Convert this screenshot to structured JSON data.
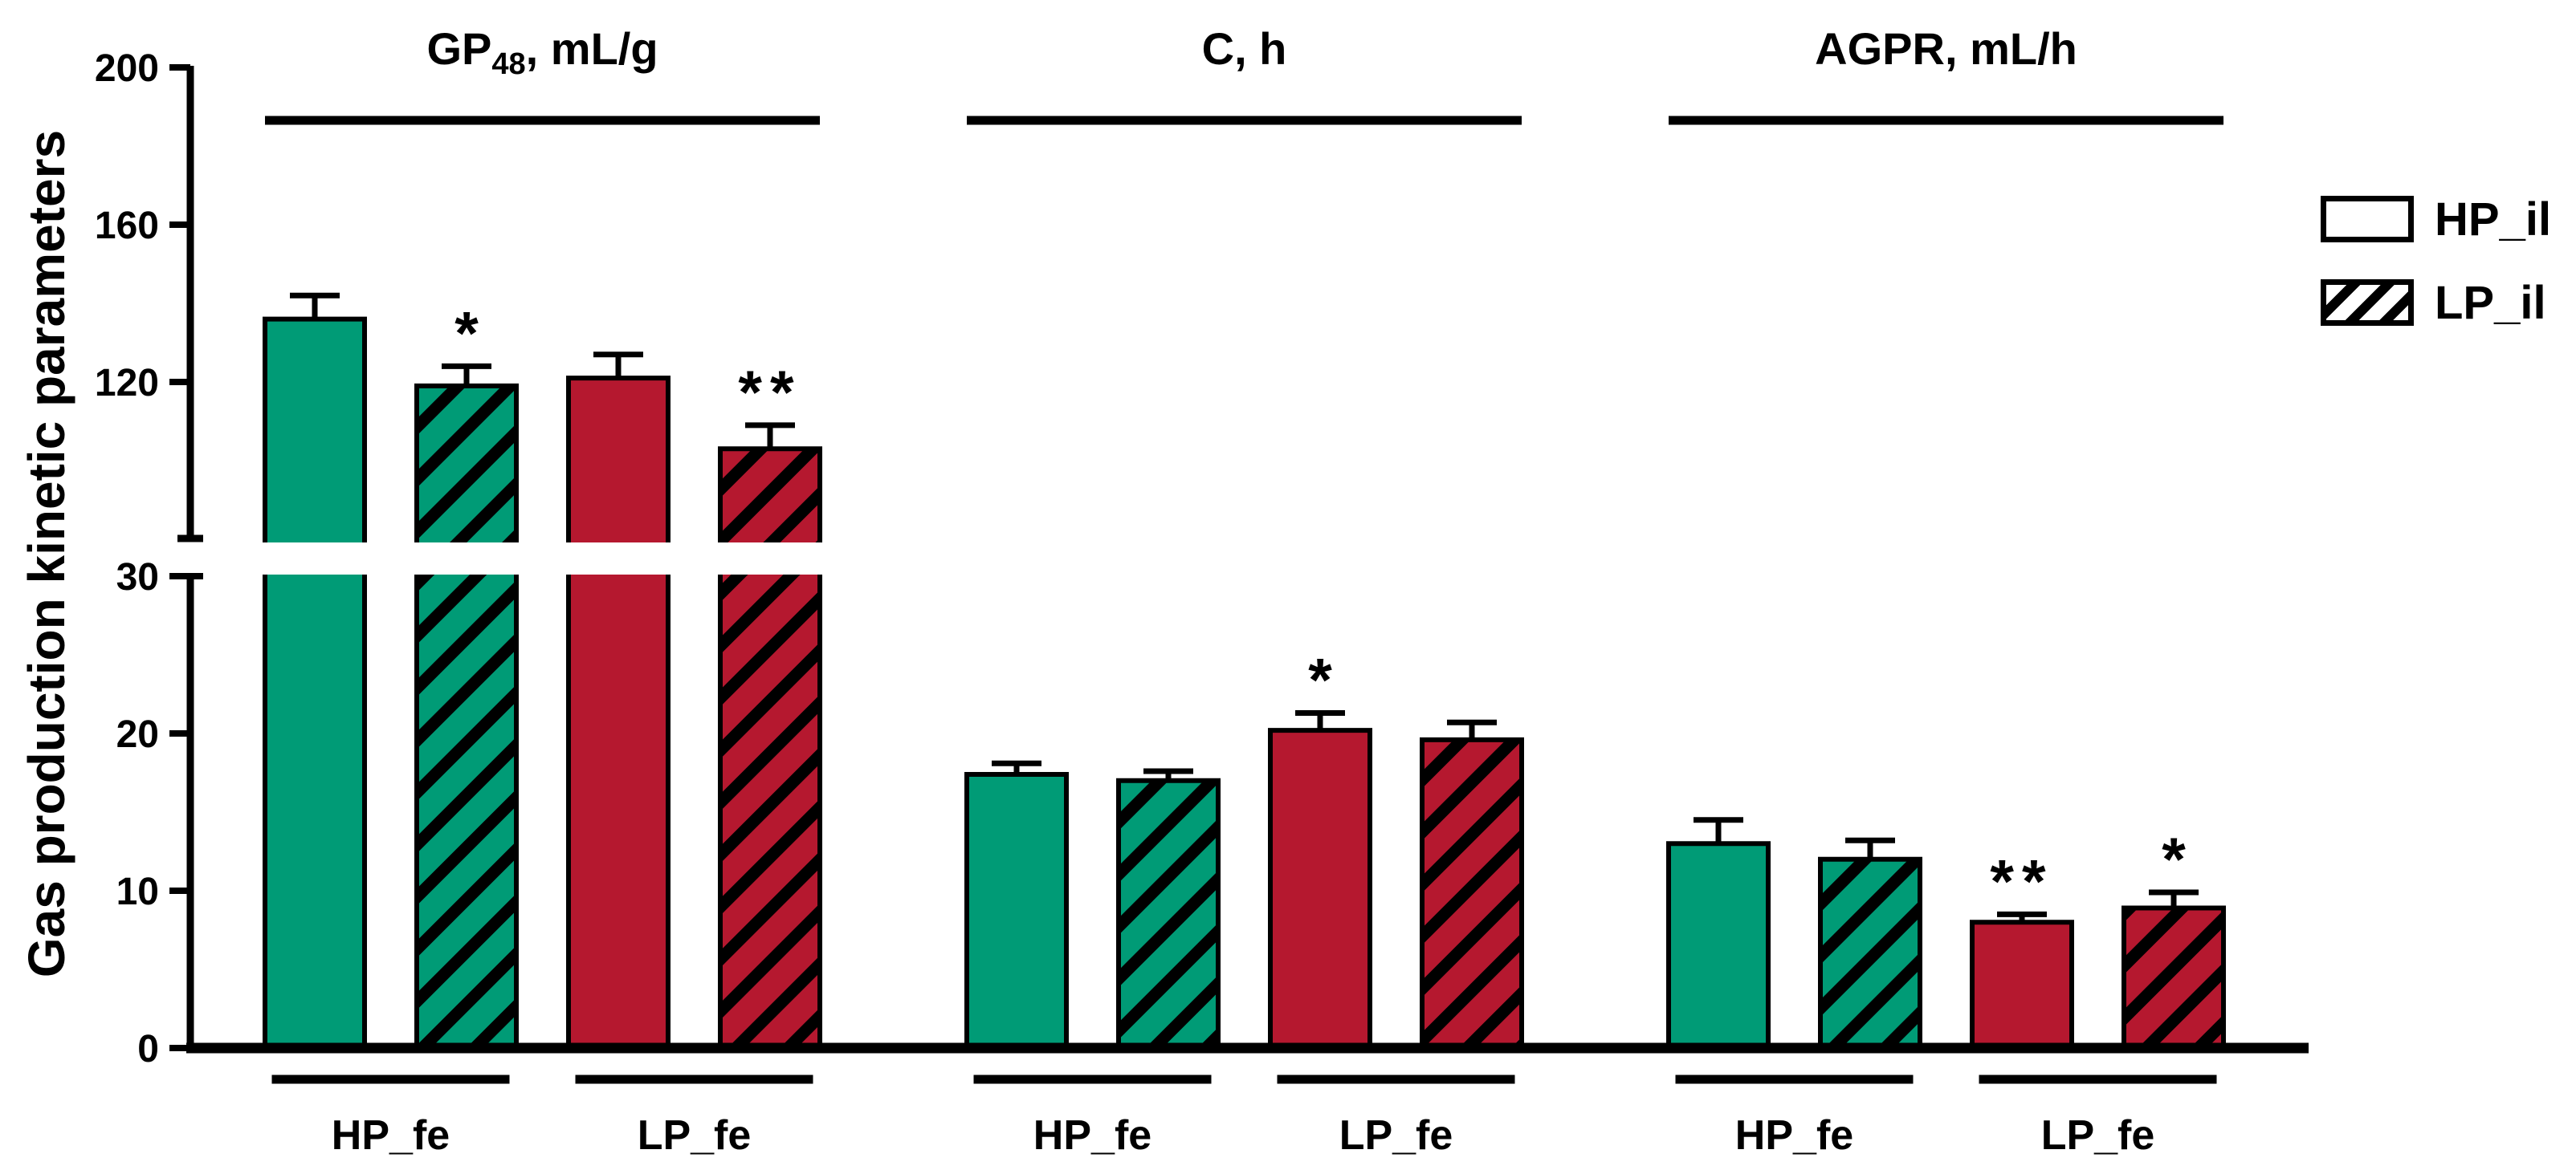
{
  "chart_data": {
    "type": "bar",
    "title": "",
    "ylabel": "Gas production kinetic parameters",
    "y_axis": {
      "broken": true,
      "upper_segment": {
        "ticks": [
          120,
          160,
          200
        ],
        "tick_labels": [
          "120",
          "160",
          "200"
        ],
        "range_start": 80,
        "range_end": 200
      },
      "lower_segment": {
        "ticks": [
          0,
          10,
          20,
          30
        ],
        "tick_labels": [
          "0",
          "10",
          "20",
          "30"
        ],
        "range_start": 0,
        "range_end": 30
      }
    },
    "legend": [
      {
        "name": "HP_il",
        "pattern": "solid"
      },
      {
        "name": "LP_il",
        "pattern": "hatched"
      }
    ],
    "colors": {
      "HP_fe": "#009B76",
      "LP_fe": "#B5182F",
      "outline": "#000000"
    },
    "panels": [
      {
        "key": "gp48",
        "parameter": "GP48, mL/g",
        "title_main": "GP",
        "title_sub": "48",
        "title_suffix": ", mL/g",
        "groups": [
          {
            "label": "HP_fe",
            "color_key": "HP_fe",
            "bars": [
              {
                "series": "HP_il",
                "hatched": false,
                "value": 136,
                "error": 6,
                "significance": ""
              },
              {
                "series": "LP_il",
                "hatched": true,
                "value": 119,
                "error": 5,
                "significance": "*"
              }
            ]
          },
          {
            "label": "LP_fe",
            "color_key": "LP_fe",
            "bars": [
              {
                "series": "HP_il",
                "hatched": false,
                "value": 121,
                "error": 6,
                "significance": ""
              },
              {
                "series": "LP_il",
                "hatched": true,
                "value": 103,
                "error": 6,
                "significance": "**"
              }
            ]
          }
        ]
      },
      {
        "key": "c",
        "parameter": "C, h",
        "title_main": "C",
        "title_sub": "",
        "title_suffix": ", h",
        "groups": [
          {
            "label": "HP_fe",
            "color_key": "HP_fe",
            "bars": [
              {
                "series": "HP_il",
                "hatched": false,
                "value": 17.4,
                "error": 0.7,
                "significance": ""
              },
              {
                "series": "LP_il",
                "hatched": true,
                "value": 17.0,
                "error": 0.6,
                "significance": ""
              }
            ]
          },
          {
            "label": "LP_fe",
            "color_key": "LP_fe",
            "bars": [
              {
                "series": "HP_il",
                "hatched": false,
                "value": 20.2,
                "error": 1.1,
                "significance": "*"
              },
              {
                "series": "LP_il",
                "hatched": true,
                "value": 19.6,
                "error": 1.1,
                "significance": ""
              }
            ]
          }
        ]
      },
      {
        "key": "agpr",
        "parameter": "AGPR, mL/h",
        "title_main": "AGPR",
        "title_sub": "",
        "title_suffix": ", mL/h",
        "groups": [
          {
            "label": "HP_fe",
            "color_key": "HP_fe",
            "bars": [
              {
                "series": "HP_il",
                "hatched": false,
                "value": 13.0,
                "error": 1.5,
                "significance": ""
              },
              {
                "series": "LP_il",
                "hatched": true,
                "value": 12.0,
                "error": 1.2,
                "significance": ""
              }
            ]
          },
          {
            "label": "LP_fe",
            "color_key": "LP_fe",
            "bars": [
              {
                "series": "HP_il",
                "hatched": false,
                "value": 8.0,
                "error": 0.5,
                "significance": "**"
              },
              {
                "series": "LP_il",
                "hatched": true,
                "value": 8.9,
                "error": 1.0,
                "significance": "*"
              }
            ]
          }
        ]
      }
    ]
  }
}
